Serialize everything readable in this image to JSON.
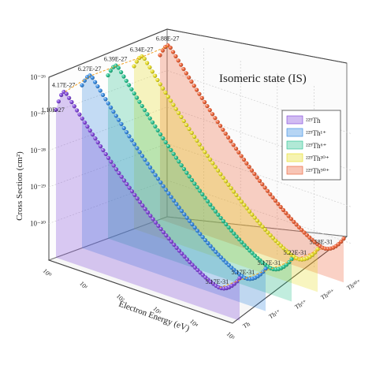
{
  "chart_data": {
    "type": "line",
    "title": "Isomeric state (IS)",
    "xlabel": "Electron Energy (eV)",
    "ylabel": "Cross Section (cm²)",
    "x_scale": "log",
    "y_scale": "log",
    "x_ticks": [
      "10⁰",
      "10¹",
      "10²",
      "10³",
      "10⁴",
      "10⁵"
    ],
    "y_ticks": [
      "10⁻³⁰",
      "10⁻²⁹",
      "10⁻²⁸",
      "10⁻²⁷",
      "10⁻²⁶"
    ],
    "z_ticks": [
      "Th",
      "Th¹⁺",
      "Th⁶⁺",
      "Th³⁰⁺",
      "Th⁹⁰⁺"
    ],
    "legend_position": "right",
    "series": [
      {
        "name": "²²⁹Th",
        "color": "#7b3fd9",
        "peak_label": "4.17E-27",
        "start_label": "1.10E-27",
        "min_label": "5.17E-31"
      },
      {
        "name": "²²⁹Th¹⁺",
        "color": "#2f86e0",
        "peak_label": "6.27E-27",
        "min_label": "5.17E-31"
      },
      {
        "name": "²²⁹Th⁶⁺",
        "color": "#1fc08a",
        "peak_label": "6.39E-27",
        "min_label": "5.17E-31"
      },
      {
        "name": "²²⁹Th³⁰⁺",
        "color": "#e6dc1e",
        "peak_label": "6.34E-27",
        "min_label": "5.22E-31"
      },
      {
        "name": "²²⁹Th⁹⁰⁺",
        "color": "#ec5a2d",
        "peak_label": "6.88E-27",
        "min_label": "5.58E-31"
      }
    ]
  }
}
